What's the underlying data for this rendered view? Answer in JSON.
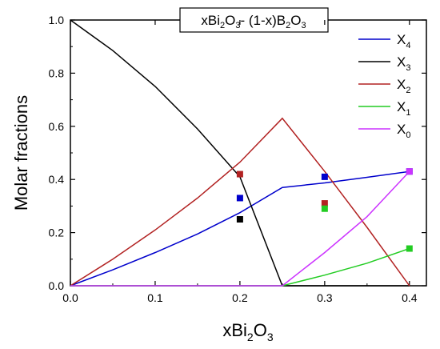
{
  "chart_data": {
    "type": "line",
    "title_parts": {
      "a": "xBi",
      "a_sub": "2",
      "b": "O",
      "b_sub": "3",
      "c": "- (1-x)B",
      "c_sub": "2",
      "d": "O",
      "d_sub": "3"
    },
    "ylabel": "Molar fractions",
    "xlabel_parts": {
      "a": "xBi",
      "a_sub": "2",
      "b": "O",
      "b_sub": "3"
    },
    "xlim": [
      0.0,
      0.42
    ],
    "ylim": [
      0.0,
      1.0
    ],
    "x_ticks": [
      "0.0",
      "0.1",
      "0.2",
      "0.3",
      "0.4"
    ],
    "y_ticks": [
      "0.0",
      "0.2",
      "0.4",
      "0.6",
      "0.8",
      "1.0"
    ],
    "legend_position": "top-right",
    "series": [
      {
        "name": "X",
        "sub": "4",
        "color": "#0000cc",
        "line": [
          [
            0.0,
            0.0
          ],
          [
            0.05,
            0.06
          ],
          [
            0.1,
            0.125
          ],
          [
            0.15,
            0.195
          ],
          [
            0.2,
            0.275
          ],
          [
            0.25,
            0.37
          ],
          [
            0.3,
            0.387
          ],
          [
            0.35,
            0.408
          ],
          [
            0.4,
            0.43
          ]
        ],
        "points": [
          [
            0.2,
            0.33
          ],
          [
            0.3,
            0.41
          ],
          [
            0.4,
            0.43
          ]
        ]
      },
      {
        "name": "X",
        "sub": "3",
        "color": "#000000",
        "line": [
          [
            0.0,
            1.0
          ],
          [
            0.05,
            0.885
          ],
          [
            0.1,
            0.75
          ],
          [
            0.15,
            0.59
          ],
          [
            0.2,
            0.41
          ],
          [
            0.25,
            0.0
          ],
          [
            0.4,
            0.0
          ]
        ],
        "points": [
          [
            0.2,
            0.25
          ]
        ]
      },
      {
        "name": "X",
        "sub": "2",
        "color": "#b22222",
        "line": [
          [
            0.0,
            0.0
          ],
          [
            0.05,
            0.1
          ],
          [
            0.1,
            0.21
          ],
          [
            0.15,
            0.33
          ],
          [
            0.2,
            0.465
          ],
          [
            0.25,
            0.63
          ],
          [
            0.3,
            0.43
          ],
          [
            0.35,
            0.22
          ],
          [
            0.4,
            0.0
          ]
        ],
        "points": [
          [
            0.2,
            0.42
          ],
          [
            0.3,
            0.31
          ]
        ]
      },
      {
        "name": "X",
        "sub": "1",
        "color": "#22cc22",
        "line": [
          [
            0.0,
            0.0
          ],
          [
            0.25,
            0.0
          ],
          [
            0.3,
            0.04
          ],
          [
            0.35,
            0.085
          ],
          [
            0.4,
            0.14
          ]
        ],
        "points": [
          [
            0.3,
            0.29
          ],
          [
            0.4,
            0.14
          ]
        ]
      },
      {
        "name": "X",
        "sub": "0",
        "color": "#cc33ff",
        "line": [
          [
            0.0,
            0.0
          ],
          [
            0.25,
            0.0
          ],
          [
            0.3,
            0.125
          ],
          [
            0.35,
            0.26
          ],
          [
            0.4,
            0.43
          ]
        ],
        "points": [
          [
            0.4,
            0.43
          ]
        ]
      }
    ]
  }
}
